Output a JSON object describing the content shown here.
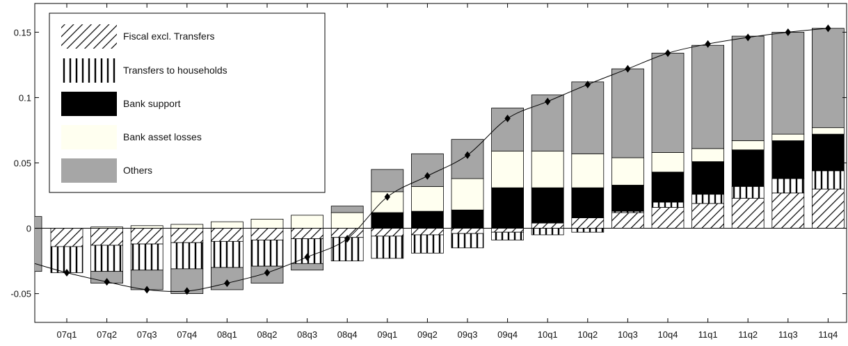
{
  "chart_data": {
    "type": "bar",
    "stacked": true,
    "title": "",
    "xlabel": "",
    "ylabel": "",
    "ylim": [
      -0.072,
      0.172
    ],
    "yticks": [
      -0.05,
      0,
      0.05,
      0.1,
      0.15
    ],
    "ytick_labels": [
      "-0.05",
      "0",
      "0.05",
      "0.1",
      "0.15"
    ],
    "grid": false,
    "legend_position": "top-left",
    "categories": [
      "07q1",
      "07q2",
      "07q3",
      "07q4",
      "08q1",
      "08q2",
      "08q3",
      "08q4",
      "09q1",
      "09q2",
      "09q3",
      "09q4",
      "10q1",
      "10q2",
      "10q3",
      "10q4",
      "11q1",
      "11q2",
      "11q3",
      "11q4"
    ],
    "series": [
      {
        "name": "Fiscal excl. Transfers",
        "pattern": "diagonal-hatch",
        "color": "#ffffff",
        "values": [
          -0.014,
          -0.013,
          -0.012,
          -0.011,
          -0.01,
          -0.009,
          -0.008,
          -0.007,
          -0.006,
          -0.005,
          -0.004,
          -0.003,
          0.004,
          0.008,
          0.012,
          0.016,
          0.019,
          0.023,
          0.027,
          0.03
        ]
      },
      {
        "name": "Transfers to households",
        "pattern": "vertical-hatch",
        "color": "#ffffff",
        "values": [
          -0.02,
          -0.02,
          -0.02,
          -0.02,
          -0.02,
          -0.02,
          -0.019,
          -0.018,
          -0.017,
          -0.014,
          -0.011,
          -0.006,
          -0.005,
          -0.003,
          0.001,
          0.004,
          0.007,
          0.009,
          0.011,
          0.014
        ]
      },
      {
        "name": "Bank support",
        "pattern": "solid",
        "color": "#000000",
        "values": [
          0.0,
          0.0,
          0.0,
          0.0,
          0.0,
          0.0,
          0.0,
          0.0,
          0.012,
          0.013,
          0.014,
          0.031,
          0.027,
          0.023,
          0.02,
          0.023,
          0.025,
          0.028,
          0.029,
          0.028
        ]
      },
      {
        "name": "Bank asset losses",
        "pattern": "solid",
        "color": "#fffff0",
        "values": [
          0.0,
          0.001,
          0.002,
          0.003,
          0.005,
          0.007,
          0.01,
          0.012,
          0.016,
          0.019,
          0.024,
          0.028,
          0.028,
          0.026,
          0.021,
          0.015,
          0.01,
          0.007,
          0.005,
          0.005
        ]
      },
      {
        "name": "Others",
        "pattern": "solid",
        "color": "#a6a6a6",
        "values": [
          0.0,
          -0.009,
          -0.015,
          -0.019,
          -0.017,
          -0.013,
          -0.005,
          0.005,
          0.017,
          0.025,
          0.03,
          0.033,
          0.043,
          0.055,
          0.068,
          0.076,
          0.079,
          0.08,
          0.078,
          0.076
        ]
      }
    ],
    "line": {
      "name": "",
      "marker": "diamond",
      "color": "#000000",
      "values": [
        -0.034,
        -0.041,
        -0.047,
        -0.048,
        -0.042,
        -0.034,
        -0.022,
        -0.008,
        0.024,
        0.04,
        0.056,
        0.084,
        0.097,
        0.11,
        0.122,
        0.134,
        0.141,
        0.146,
        0.15,
        0.153
      ]
    },
    "edge_partial": {
      "line_left_value": -0.027,
      "bar_top_value": 0.009,
      "bar_bottom_value": -0.033
    }
  }
}
